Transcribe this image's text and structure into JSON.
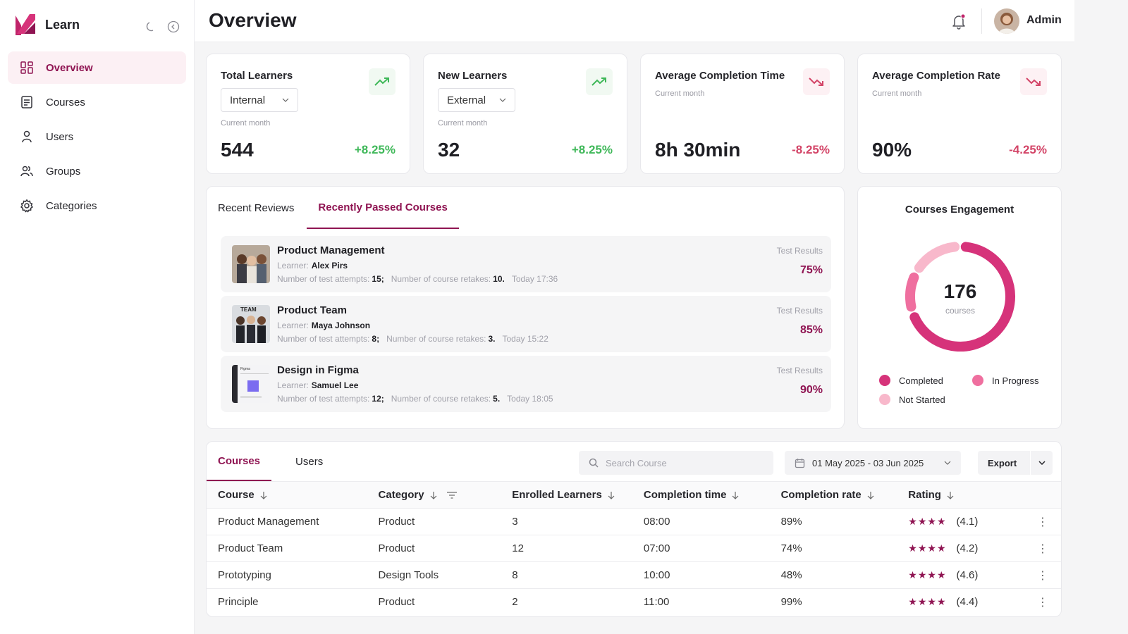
{
  "sidebar": {
    "brand": "Learn",
    "items": [
      {
        "label": "Overview",
        "icon": "dashboard-icon",
        "active": true
      },
      {
        "label": "Courses",
        "icon": "document-icon",
        "active": false
      },
      {
        "label": "Users",
        "icon": "user-icon",
        "active": false
      },
      {
        "label": "Groups",
        "icon": "users-icon",
        "active": false
      },
      {
        "label": "Categories",
        "icon": "gear-icon",
        "active": false
      }
    ]
  },
  "header": {
    "title": "Overview",
    "user": "Admin"
  },
  "stats": [
    {
      "title": "Total Learners",
      "select": "Internal",
      "sub": "Current month",
      "value": "544",
      "change": "+8.25%",
      "trend": "up"
    },
    {
      "title": "New Learners",
      "select": "External",
      "sub": "Current month",
      "value": "32",
      "change": "+8.25%",
      "trend": "up"
    },
    {
      "title": "Average Completion Time",
      "sub": "Current month",
      "value": "8h 30min",
      "change": "-8.25%",
      "trend": "down"
    },
    {
      "title": "Average Completion Rate",
      "sub": "Current month",
      "value": "90%",
      "change": "-4.25%",
      "trend": "down"
    }
  ],
  "reviews": {
    "tabs": [
      "Recent Reviews",
      "Recently Passed Courses"
    ],
    "active_tab": 1,
    "learner_label": "Learner:",
    "attempts_label": "Number of test attempts:",
    "retakes_label": "Number of course retakes:",
    "result_label": "Test Results",
    "items": [
      {
        "title": "Product Management",
        "learner": "Alex Pirs",
        "attempts": "15;",
        "retakes": "10.",
        "time": "Today 17:36",
        "result": "75%"
      },
      {
        "title": "Product Team",
        "learner": "Maya Johnson",
        "attempts": "8;",
        "retakes": "3.",
        "time": "Today 15:22",
        "result": "85%"
      },
      {
        "title": "Design in Figma",
        "learner": "Samuel Lee",
        "attempts": "12;",
        "retakes": "5.",
        "time": "Today 18:05",
        "result": "90%"
      }
    ],
    "thumb_team_text": "TEAM",
    "thumb_figma_text": "Figma"
  },
  "engagement": {
    "title": "Courses Engagement",
    "total": "176",
    "unit": "courses",
    "legend": [
      {
        "label": "Completed",
        "color": "#d6337a"
      },
      {
        "label": "In Progress",
        "color": "#ef6f9f"
      },
      {
        "label": "Not Started",
        "color": "#f8b8cb"
      }
    ],
    "segments": [
      {
        "label": "Completed",
        "fraction": 0.7
      },
      {
        "label": "In Progress",
        "fraction": 0.13
      },
      {
        "label": "Not Started",
        "fraction": 0.17
      }
    ]
  },
  "table": {
    "tabs": [
      "Courses",
      "Users"
    ],
    "active_tab": 0,
    "search_placeholder": "Search Course",
    "date_range": "01 May 2025 - 03 Jun 2025",
    "export_label": "Export",
    "columns": [
      "Course",
      "Category",
      "Enrolled Learners",
      "Completion time",
      "Completion rate",
      "Rating"
    ],
    "rows": [
      {
        "course": "Product Management",
        "category": "Product",
        "enrolled": "3",
        "time": "08:00",
        "rate": "89%",
        "stars": "★★★★",
        "rating": "(4.1)"
      },
      {
        "course": "Product Team",
        "category": "Product",
        "enrolled": "12",
        "time": "07:00",
        "rate": "74%",
        "stars": "★★★★",
        "rating": "(4.2)"
      },
      {
        "course": "Prototyping",
        "category": "Design Tools",
        "enrolled": "8",
        "time": "10:00",
        "rate": "48%",
        "stars": "★★★★",
        "rating": "(4.6)"
      },
      {
        "course": "Principle",
        "category": "Product",
        "enrolled": "2",
        "time": "11:00",
        "rate": "99%",
        "stars": "★★★★",
        "rating": "(4.4)"
      }
    ]
  },
  "colors": {
    "accent": "#8f1452",
    "positive": "#3fb859",
    "negative": "#d34467"
  }
}
